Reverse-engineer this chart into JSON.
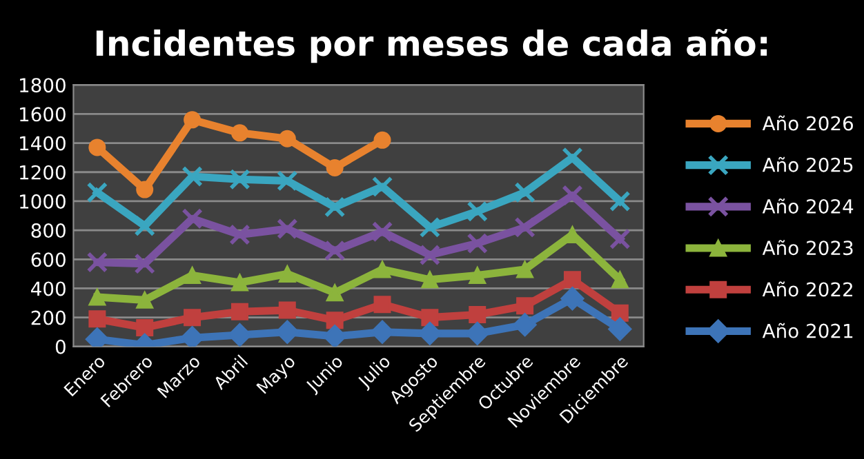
{
  "chart_data": {
    "type": "line",
    "title": "Incidentes por meses de cada año:",
    "categories": [
      "Enero",
      "Febrero",
      "Marzo",
      "Abril",
      "Mayo",
      "Junio",
      "Julio",
      "Agosto",
      "Septiembre",
      "Octubre",
      "Noviembre",
      "Diciembre"
    ],
    "series": [
      {
        "name": "Año 2026",
        "color": "#e8822e",
        "marker": "circle",
        "values": [
          1370,
          1080,
          1560,
          1470,
          1430,
          1230,
          1420,
          null,
          null,
          null,
          null,
          null
        ]
      },
      {
        "name": "Año 2025",
        "color": "#3aa6c0",
        "marker": "cross",
        "values": [
          1060,
          830,
          1170,
          1150,
          1140,
          960,
          1100,
          820,
          930,
          1060,
          1300,
          1000
        ]
      },
      {
        "name": "Año 2024",
        "color": "#7a52a0",
        "marker": "cross",
        "values": [
          580,
          570,
          880,
          770,
          810,
          660,
          790,
          630,
          710,
          820,
          1040,
          740
        ]
      },
      {
        "name": "Año 2023",
        "color": "#8cb43c",
        "marker": "triangle",
        "values": [
          340,
          320,
          490,
          440,
          500,
          370,
          530,
          460,
          490,
          530,
          770,
          460
        ]
      },
      {
        "name": "Año 2022",
        "color": "#c0403e",
        "marker": "square",
        "values": [
          190,
          130,
          200,
          240,
          250,
          180,
          290,
          200,
          220,
          280,
          460,
          230
        ]
      },
      {
        "name": "Año 2021",
        "color": "#3d74b8",
        "marker": "diamond",
        "values": [
          50,
          10,
          60,
          80,
          100,
          70,
          100,
          90,
          90,
          150,
          330,
          120
        ]
      }
    ],
    "ylim": [
      0,
      1800
    ],
    "yticks": [
      0,
      200,
      400,
      600,
      800,
      1000,
      1200,
      1400,
      1600,
      1800
    ],
    "grid": "y",
    "legend": "right"
  }
}
